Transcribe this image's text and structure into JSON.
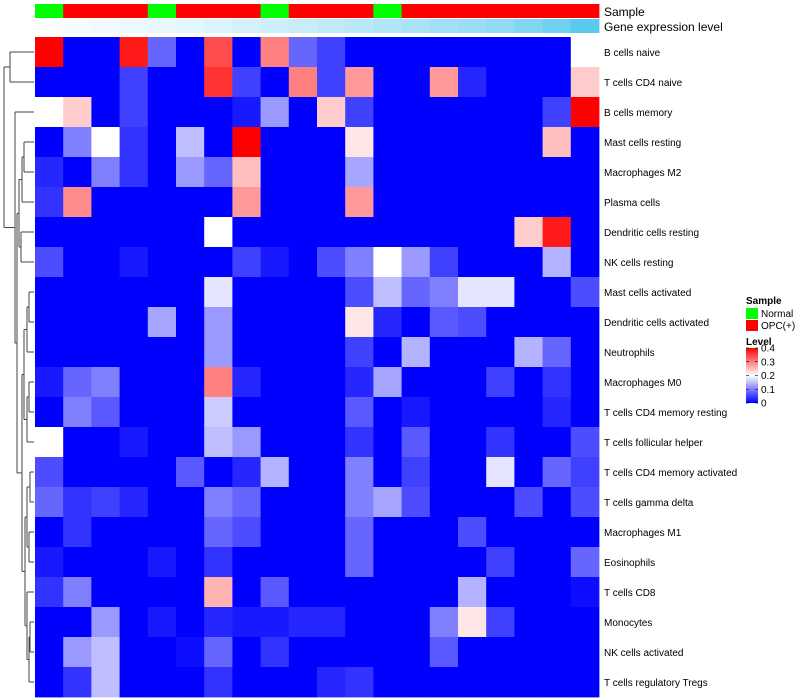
{
  "chart_data": {
    "type": "heatmap",
    "title": "",
    "annotation_labels": {
      "sample": "Sample",
      "gene_expression": "Gene expression level"
    },
    "samples": [
      "Normal",
      "OPC(+)",
      "OPC(+)",
      "OPC(+)",
      "Normal",
      "OPC(+)",
      "OPC(+)",
      "OPC(+)",
      "Normal",
      "OPC(+)",
      "OPC(+)",
      "OPC(+)",
      "Normal",
      "OPC(+)",
      "OPC(+)",
      "OPC(+)",
      "OPC(+)",
      "OPC(+)",
      "OPC(+)",
      "OPC(+)"
    ],
    "gene_expression_level": [
      0.02,
      0.05,
      0.08,
      0.11,
      0.13,
      0.16,
      0.2,
      0.24,
      0.28,
      0.31,
      0.35,
      0.39,
      0.43,
      0.47,
      0.52,
      0.56,
      0.62,
      0.7,
      0.8,
      0.92
    ],
    "rows": [
      "B cells naive",
      "T cells CD4 naive",
      "B cells memory",
      "Mast cells resting",
      "Macrophages M2",
      "Plasma cells",
      "Dendritic cells resting",
      "NK cells resting",
      "Mast cells activated",
      "Dendritic cells activated",
      "Neutrophils",
      "Macrophages M0",
      "T cells CD4 memory resting",
      "T cells follicular helper",
      "T cells CD4 memory activated",
      "T cells gamma delta",
      "Macrophages M1",
      "Eosinophils",
      "T cells CD8",
      "Monocytes",
      "NK cells activated",
      "T cells regulatory  Tregs"
    ],
    "values": [
      [
        0.4,
        0,
        0,
        0.38,
        0.08,
        0,
        0.34,
        0,
        0.3,
        0.08,
        0.05,
        0,
        0,
        0,
        0,
        0,
        0,
        0,
        0,
        0.2
      ],
      [
        0,
        0,
        0,
        0.05,
        0,
        0,
        0.36,
        0.05,
        0,
        0.3,
        0.05,
        0.28,
        0,
        0,
        0.28,
        0.03,
        0,
        0,
        0,
        0.24
      ],
      [
        0.2,
        0.24,
        0,
        0.05,
        0,
        0,
        0,
        0.02,
        0.12,
        0,
        0.24,
        0.05,
        0,
        0,
        0,
        0,
        0,
        0,
        0.05,
        0.4
      ],
      [
        0,
        0.1,
        0.2,
        0.04,
        0,
        0.15,
        0,
        0.4,
        0,
        0,
        0,
        0.22,
        0,
        0,
        0,
        0,
        0,
        0,
        0.25,
        0
      ],
      [
        0.03,
        0,
        0.1,
        0.04,
        0,
        0.12,
        0.08,
        0.25,
        0,
        0,
        0,
        0.13,
        0,
        0,
        0,
        0,
        0,
        0,
        0,
        0
      ],
      [
        0.04,
        0.29,
        0,
        0,
        0,
        0,
        0,
        0.28,
        0,
        0,
        0,
        0.28,
        0,
        0,
        0,
        0,
        0,
        0,
        0,
        0
      ],
      [
        0,
        0,
        0,
        0,
        0,
        0,
        0.2,
        0,
        0,
        0,
        0,
        0,
        0,
        0,
        0,
        0,
        0,
        0.24,
        0.38,
        0
      ],
      [
        0.06,
        0,
        0,
        0.02,
        0,
        0,
        0,
        0.05,
        0.02,
        0,
        0.06,
        0.1,
        0.2,
        0.12,
        0.05,
        0,
        0,
        0,
        0.14,
        0
      ],
      [
        0,
        0,
        0,
        0,
        0,
        0,
        0.18,
        0,
        0,
        0,
        0,
        0.06,
        0.15,
        0.08,
        0.1,
        0.18,
        0.18,
        0,
        0,
        0.06
      ],
      [
        0,
        0,
        0,
        0,
        0.13,
        0,
        0.12,
        0,
        0,
        0,
        0,
        0.22,
        0.03,
        0,
        0.07,
        0.06,
        0,
        0,
        0,
        0
      ],
      [
        0,
        0,
        0,
        0,
        0,
        0,
        0.12,
        0,
        0,
        0,
        0,
        0.05,
        0,
        0.14,
        0,
        0,
        0,
        0.14,
        0.08,
        0
      ],
      [
        0.02,
        0.08,
        0.1,
        0,
        0,
        0,
        0.3,
        0.03,
        0,
        0,
        0,
        0.03,
        0.13,
        0,
        0,
        0,
        0.05,
        0,
        0.04,
        0
      ],
      [
        0,
        0.1,
        0.07,
        0,
        0,
        0,
        0.16,
        0,
        0,
        0,
        0,
        0.07,
        0,
        0.02,
        0,
        0,
        0,
        0,
        0.03,
        0
      ],
      [
        0.2,
        0,
        0,
        0.02,
        0,
        0,
        0.15,
        0.12,
        0,
        0,
        0,
        0.04,
        0,
        0.07,
        0,
        0,
        0.04,
        0,
        0,
        0.06
      ],
      [
        0.06,
        0,
        0,
        0,
        0,
        0.07,
        0,
        0.03,
        0.14,
        0,
        0,
        0.1,
        0,
        0.05,
        0,
        0,
        0.18,
        0,
        0.08,
        0.05
      ],
      [
        0.08,
        0.04,
        0.05,
        0.03,
        0,
        0,
        0.1,
        0.08,
        0,
        0,
        0,
        0.1,
        0.13,
        0.06,
        0,
        0,
        0,
        0.06,
        0,
        0.06
      ],
      [
        0,
        0.04,
        0,
        0,
        0,
        0,
        0.08,
        0.06,
        0,
        0,
        0,
        0.08,
        0,
        0,
        0,
        0.06,
        0,
        0,
        0,
        0
      ],
      [
        0.02,
        0,
        0,
        0,
        0.02,
        0,
        0.04,
        0,
        0,
        0,
        0,
        0.08,
        0,
        0,
        0,
        0,
        0.05,
        0,
        0,
        0.08
      ],
      [
        0.04,
        0.1,
        0,
        0,
        0,
        0,
        0.26,
        0,
        0.07,
        0,
        0,
        0,
        0,
        0,
        0,
        0.14,
        0,
        0,
        0,
        0.01
      ],
      [
        0,
        0,
        0.12,
        0,
        0.02,
        0,
        0.03,
        0.02,
        0.02,
        0.03,
        0.03,
        0,
        0,
        0,
        0.1,
        0.22,
        0.05,
        0,
        0,
        0
      ],
      [
        0,
        0.12,
        0.15,
        0,
        0,
        0.01,
        0.08,
        0,
        0.04,
        0,
        0,
        0,
        0,
        0,
        0.07,
        0,
        0,
        0,
        0,
        0
      ],
      [
        0,
        0.04,
        0.15,
        0,
        0,
        0,
        0.04,
        0,
        0,
        0,
        0.03,
        0.04,
        0,
        0,
        0,
        0,
        0,
        0,
        0,
        0
      ]
    ],
    "color_scale": {
      "min": 0,
      "max": 0.4,
      "low": "#0000ff",
      "mid": "#ffffff",
      "high": "#ff0000"
    },
    "annotation_colors": {
      "Normal": "#00ff00",
      "OPC(+)": "#ff0000"
    },
    "legend": {
      "sample_title": "Sample",
      "sample_entries": [
        "Normal",
        "OPC(+)"
      ],
      "level_title": "Level",
      "level_ticks": [
        "0.4",
        "0.3",
        "0.2",
        "0.1",
        "0"
      ],
      "level_tick_values": [
        0.4,
        0.3,
        0.2,
        0.1,
        0
      ]
    }
  }
}
